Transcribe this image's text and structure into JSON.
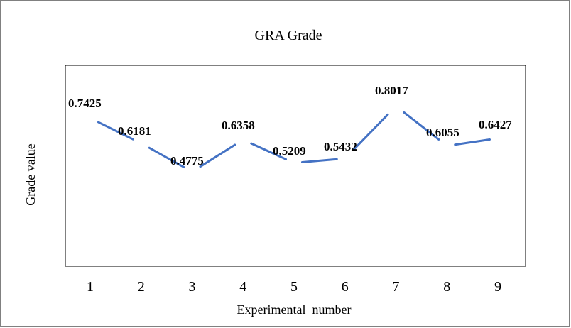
{
  "chart_data": {
    "type": "line",
    "title": "GRA Grade",
    "xlabel": "Experimental  number",
    "ylabel": "Grade value",
    "categories": [
      "1",
      "2",
      "3",
      "4",
      "5",
      "6",
      "7",
      "8",
      "9"
    ],
    "series": [
      {
        "values": [
          0.7425,
          0.6181,
          0.4775,
          0.6358,
          0.5209,
          0.5432,
          0.8017,
          0.6055,
          0.6427
        ],
        "labels": [
          "0.7425",
          "0.6181",
          "0.4775",
          "0.6358",
          "0.5209",
          "0.5432",
          "0.8017",
          "0.6055",
          "0.6427"
        ]
      }
    ],
    "grid": false,
    "legend": "none",
    "line_color": "#4472C4"
  }
}
